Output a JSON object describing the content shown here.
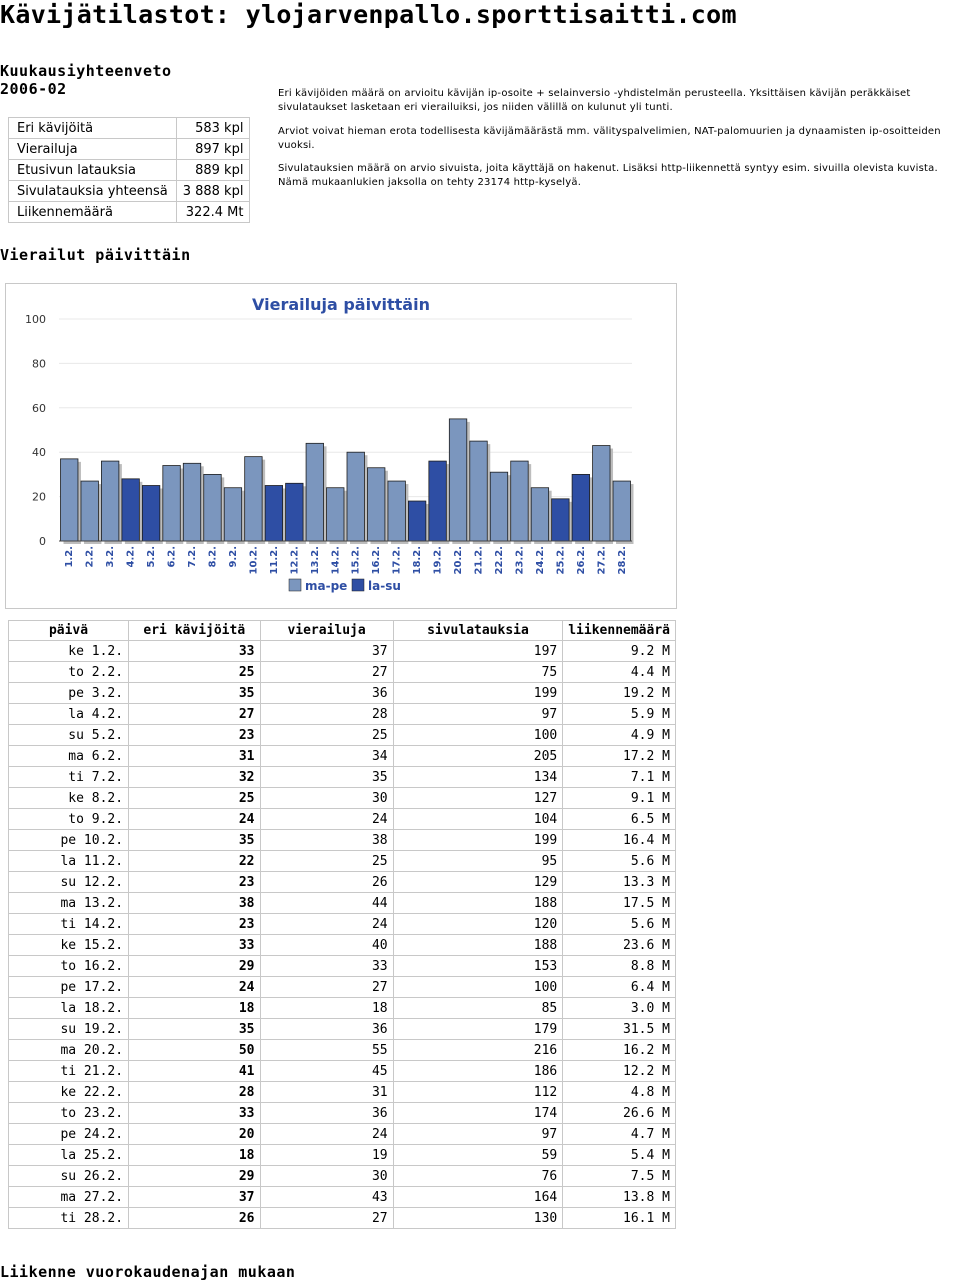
{
  "site_title": "Kävijätilastot: ylojarvenpallo.sporttisaitti.com",
  "summary": {
    "heading_line1": "Kuukausiyhteenveto",
    "heading_line2": "2006-02",
    "rows": [
      {
        "label": "Eri kävijöitä",
        "value": "583 kpl"
      },
      {
        "label": "Vierailuja",
        "value": "897 kpl"
      },
      {
        "label": "Etusivun latauksia",
        "value": "889 kpl"
      },
      {
        "label": "Sivulatauksia yhteensä",
        "value": "3 888 kpl"
      },
      {
        "label": "Liikennemäärä",
        "value": "322.4 Mt"
      }
    ]
  },
  "notes": [
    "Eri kävijöiden määrä on arvioitu kävijän ip-osoite + selainversio -yhdistelmän perusteella. Yksittäisen kävijän peräkkäiset sivulataukset lasketaan eri vierailuiksi, jos niiden välillä on kulunut yli tunti.",
    "Arviot voivat hieman erota todellisesta kävijämäärästä mm. välityspalvelimien, NAT-palomuurien ja dynaamisten ip-osoitteiden vuoksi.",
    "Sivulatauksien määrä on arvio sivuista, joita käyttäjä on hakenut. Lisäksi http-liikennettä syntyy esim. sivuilla olevista kuvista. Nämä mukaanlukien jaksolla on tehty 23174 http-kyselyä."
  ],
  "daily_heading": "Vierailut päivittäin",
  "chart_data": {
    "type": "bar",
    "title": "Vierailuja päivittäin",
    "categories": [
      "1.2.",
      "2.2.",
      "3.2.",
      "4.2.",
      "5.2.",
      "6.2.",
      "7.2.",
      "8.2.",
      "9.2.",
      "10.2.",
      "11.2.",
      "12.2.",
      "13.2.",
      "14.2.",
      "15.2.",
      "16.2.",
      "17.2.",
      "18.2.",
      "19.2.",
      "20.2.",
      "21.2.",
      "22.2.",
      "23.2.",
      "24.2.",
      "25.2.",
      "26.2.",
      "27.2.",
      "28.2."
    ],
    "values": [
      37,
      27,
      36,
      28,
      25,
      34,
      35,
      30,
      24,
      38,
      25,
      26,
      44,
      24,
      40,
      33,
      27,
      18,
      36,
      55,
      45,
      31,
      36,
      24,
      19,
      30,
      43,
      27
    ],
    "series": [
      {
        "name": "ma-pe",
        "color": "#7b96be"
      },
      {
        "name": "la-su",
        "color": "#2e4ea4"
      }
    ],
    "weekend_indices": [
      3,
      4,
      10,
      11,
      17,
      18,
      24,
      25
    ],
    "yticks": [
      0,
      20,
      40,
      60,
      80,
      100
    ],
    "ylim": [
      0,
      100
    ],
    "legend_position": "bottom"
  },
  "daily_table": {
    "headers": [
      "päivä",
      "eri kävijöitä",
      "vierailuja",
      "sivulatauksia",
      "liikennemäärä"
    ],
    "rows": [
      [
        "ke 1.2.",
        "33",
        "37",
        "197",
        "9.2 M"
      ],
      [
        "to 2.2.",
        "25",
        "27",
        "75",
        "4.4 M"
      ],
      [
        "pe 3.2.",
        "35",
        "36",
        "199",
        "19.2 M"
      ],
      [
        "la 4.2.",
        "27",
        "28",
        "97",
        "5.9 M"
      ],
      [
        "su 5.2.",
        "23",
        "25",
        "100",
        "4.9 M"
      ],
      [
        "ma 6.2.",
        "31",
        "34",
        "205",
        "17.2 M"
      ],
      [
        "ti 7.2.",
        "32",
        "35",
        "134",
        "7.1 M"
      ],
      [
        "ke 8.2.",
        "25",
        "30",
        "127",
        "9.1 M"
      ],
      [
        "to 9.2.",
        "24",
        "24",
        "104",
        "6.5 M"
      ],
      [
        "pe 10.2.",
        "35",
        "38",
        "199",
        "16.4 M"
      ],
      [
        "la 11.2.",
        "22",
        "25",
        "95",
        "5.6 M"
      ],
      [
        "su 12.2.",
        "23",
        "26",
        "129",
        "13.3 M"
      ],
      [
        "ma 13.2.",
        "38",
        "44",
        "188",
        "17.5 M"
      ],
      [
        "ti 14.2.",
        "23",
        "24",
        "120",
        "5.6 M"
      ],
      [
        "ke 15.2.",
        "33",
        "40",
        "188",
        "23.6 M"
      ],
      [
        "to 16.2.",
        "29",
        "33",
        "153",
        "8.8 M"
      ],
      [
        "pe 17.2.",
        "24",
        "27",
        "100",
        "6.4 M"
      ],
      [
        "la 18.2.",
        "18",
        "18",
        "85",
        "3.0 M"
      ],
      [
        "su 19.2.",
        "35",
        "36",
        "179",
        "31.5 M"
      ],
      [
        "ma 20.2.",
        "50",
        "55",
        "216",
        "16.2 M"
      ],
      [
        "ti 21.2.",
        "41",
        "45",
        "186",
        "12.2 M"
      ],
      [
        "ke 22.2.",
        "28",
        "31",
        "112",
        "4.8 M"
      ],
      [
        "to 23.2.",
        "33",
        "36",
        "174",
        "26.6 M"
      ],
      [
        "pe 24.2.",
        "20",
        "24",
        "97",
        "4.7 M"
      ],
      [
        "la 25.2.",
        "18",
        "19",
        "59",
        "5.4 M"
      ],
      [
        "su 26.2.",
        "29",
        "30",
        "76",
        "7.5 M"
      ],
      [
        "ma 27.2.",
        "37",
        "43",
        "164",
        "13.8 M"
      ],
      [
        "ti 28.2.",
        "26",
        "27",
        "130",
        "16.1 M"
      ]
    ]
  },
  "traffic_heading": "Liikenne vuorokaudenajan mukaan"
}
